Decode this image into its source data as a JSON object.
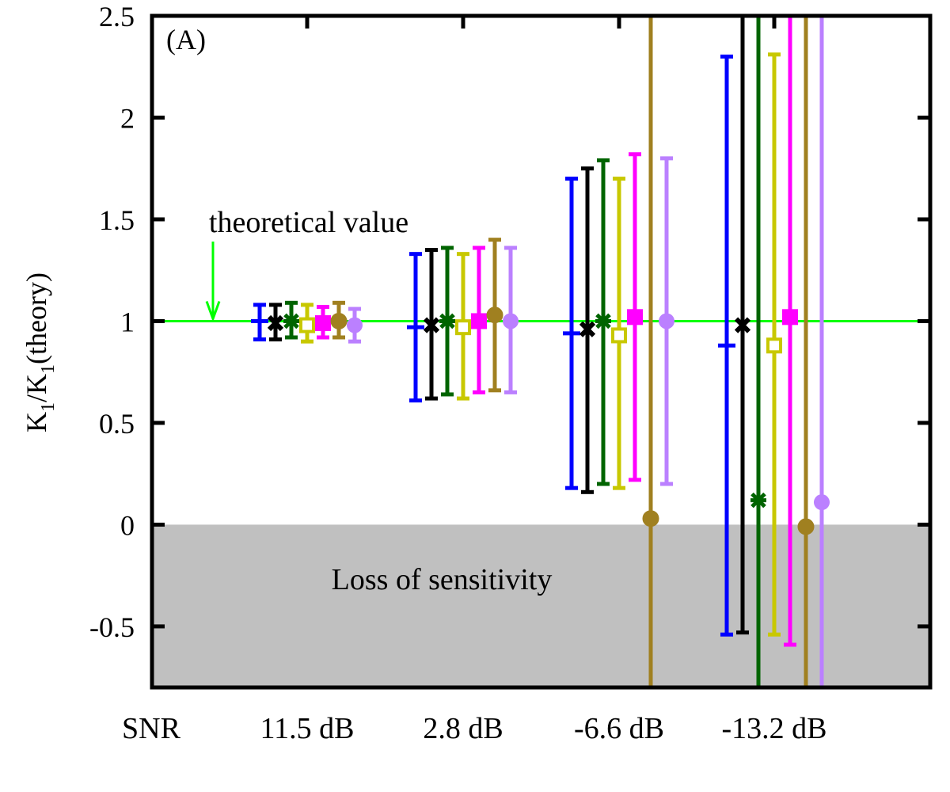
{
  "chart_data": {
    "type": "errorbar",
    "panel_label": "(A)",
    "ylabel": {
      "base1": "K",
      "sub1": "1",
      "slash": "/K",
      "sub2": "1",
      "tail": "(theory)"
    },
    "ylim": [
      -0.8,
      2.5
    ],
    "yticks": [
      {
        "value": 2.5,
        "label": "2.5"
      },
      {
        "value": 2,
        "label": "2"
      },
      {
        "value": 1.5,
        "label": "1.5"
      },
      {
        "value": 1,
        "label": "1"
      },
      {
        "value": 0.5,
        "label": "0.5"
      },
      {
        "value": 0,
        "label": "0"
      },
      {
        "value": -0.5,
        "label": "-0.5"
      }
    ],
    "x_header": "SNR",
    "categories": [
      "11.5 dB",
      "2.8 dB",
      "-6.6 dB",
      "-13.2 dB"
    ],
    "reference_line": {
      "value": 1.0,
      "label": "theoretical value",
      "color": "#00ff00"
    },
    "shaded_region": {
      "from": -0.8,
      "to": 0,
      "label": "Loss of sensitivity",
      "color": "#c0c0c0"
    },
    "series": [
      {
        "name": "blue",
        "color": "#0000ff",
        "marker": "plus",
        "points": [
          {
            "y": 1.0,
            "low": 0.91,
            "high": 1.08
          },
          {
            "y": 0.97,
            "low": 0.61,
            "high": 1.33
          },
          {
            "y": 0.94,
            "low": 0.18,
            "high": 1.7
          },
          {
            "y": 0.88,
            "low": -0.54,
            "high": 2.3
          }
        ]
      },
      {
        "name": "black",
        "color": "#000000",
        "marker": "x",
        "points": [
          {
            "y": 0.99,
            "low": 0.91,
            "high": 1.08
          },
          {
            "y": 0.98,
            "low": 0.62,
            "high": 1.35
          },
          {
            "y": 0.96,
            "low": 0.16,
            "high": 1.75
          },
          {
            "y": 0.98,
            "low": -0.53,
            "high": 2.55
          }
        ]
      },
      {
        "name": "dark green",
        "color": "#006400",
        "marker": "star",
        "points": [
          {
            "y": 1.0,
            "low": 0.92,
            "high": 1.09
          },
          {
            "y": 1.0,
            "low": 0.64,
            "high": 1.36
          },
          {
            "y": 1.0,
            "low": 0.2,
            "high": 1.79
          },
          {
            "y": 0.12,
            "low": -0.8,
            "high": 2.55
          }
        ]
      },
      {
        "name": "olive yellow",
        "color": "#c8c800",
        "marker": "open-square",
        "points": [
          {
            "y": 0.98,
            "low": 0.9,
            "high": 1.08
          },
          {
            "y": 0.97,
            "low": 0.62,
            "high": 1.33
          },
          {
            "y": 0.93,
            "low": 0.18,
            "high": 1.7
          },
          {
            "y": 0.88,
            "low": -0.54,
            "high": 2.31
          }
        ]
      },
      {
        "name": "magenta",
        "color": "#ff00ff",
        "marker": "filled-square",
        "points": [
          {
            "y": 0.99,
            "low": 0.92,
            "high": 1.07
          },
          {
            "y": 1.0,
            "low": 0.65,
            "high": 1.36
          },
          {
            "y": 1.02,
            "low": 0.22,
            "high": 1.82
          },
          {
            "y": 1.02,
            "low": -0.59,
            "high": 2.55
          }
        ]
      },
      {
        "name": "brown",
        "color": "#a08020",
        "marker": "open-circle",
        "points": [
          {
            "y": 1.0,
            "low": 0.92,
            "high": 1.09
          },
          {
            "y": 1.03,
            "low": 0.66,
            "high": 1.4
          },
          {
            "y": 0.03,
            "low": -0.8,
            "high": 2.55
          },
          {
            "y": -0.01,
            "low": -0.8,
            "high": 2.55
          }
        ]
      },
      {
        "name": "lavender",
        "color": "#bb80ff",
        "marker": "filled-circle",
        "points": [
          {
            "y": 0.98,
            "low": 0.9,
            "high": 1.06
          },
          {
            "y": 1.0,
            "low": 0.65,
            "high": 1.36
          },
          {
            "y": 1.0,
            "low": 0.2,
            "high": 1.8
          },
          {
            "y": 0.11,
            "low": -0.8,
            "high": 2.55
          }
        ]
      }
    ]
  }
}
